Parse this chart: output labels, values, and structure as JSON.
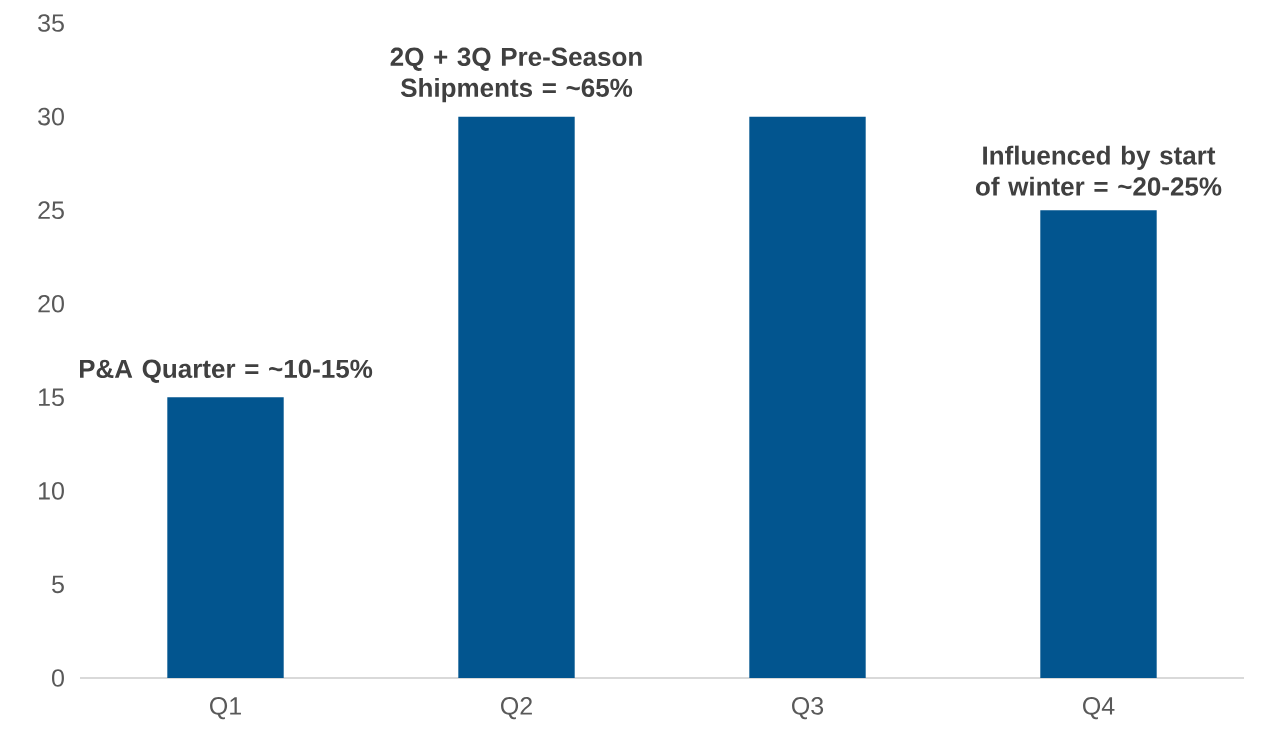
{
  "chart_data": {
    "type": "bar",
    "categories": [
      "Q1",
      "Q2",
      "Q3",
      "Q4"
    ],
    "values": [
      15,
      30,
      30,
      25
    ],
    "color": "#02558f",
    "ylim": [
      0,
      35
    ],
    "yticks": [
      0,
      5,
      10,
      15,
      20,
      25,
      30,
      35
    ],
    "annotations": [
      {
        "text": "P&A Quarter = ~10-15%",
        "x": "Q1",
        "y": 15
      },
      {
        "text": "2Q + 3Q Pre-Season Shipments = ~65%",
        "x": "Q2",
        "y": 30
      },
      {
        "text": "Influenced by start of winter = ~20-25%",
        "x": "Q4",
        "y": 25
      }
    ]
  }
}
